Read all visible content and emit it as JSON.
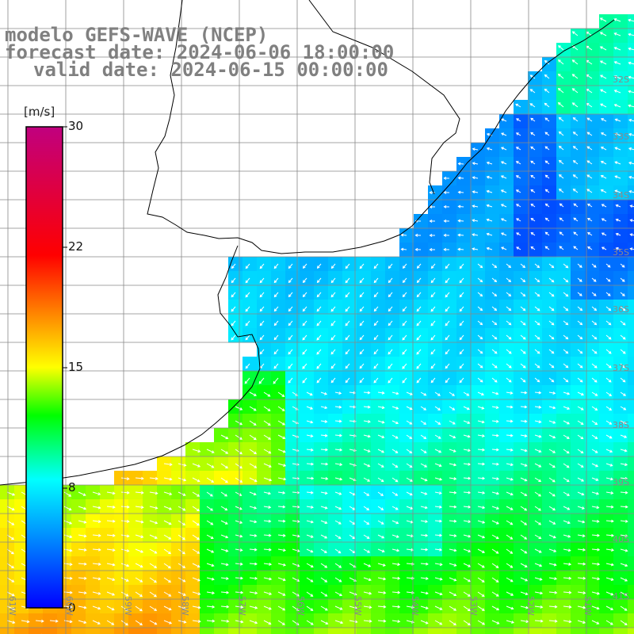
{
  "title": {
    "line1": "modelo GEFS-WAVE (NCEP)",
    "line2": "forecast date: 2024-06-06 18:00:00",
    "line3": "valid date: 2024-06-15 00:00:00"
  },
  "colorbar": {
    "unit": "[m/s]",
    "ticks": [
      "30",
      "22",
      "15",
      "8",
      "0"
    ],
    "colors": [
      "#0000ff",
      "#00ffff",
      "#00ff00",
      "#ffff00",
      "#ff0000",
      "#c0007f"
    ]
  },
  "lat_labels": [
    "32S",
    "33S",
    "34S",
    "35S",
    "36S",
    "37S",
    "38S",
    "39S",
    "40S",
    "41S"
  ],
  "lon_labels": [
    "61W",
    "60W",
    "59W",
    "58W",
    "57W",
    "56W",
    "55W",
    "54W",
    "53W",
    "52W",
    "51W"
  ],
  "field_notes": {
    "variable": "wind speed",
    "region": "Rio de la Plata and adjacent South Atlantic"
  }
}
